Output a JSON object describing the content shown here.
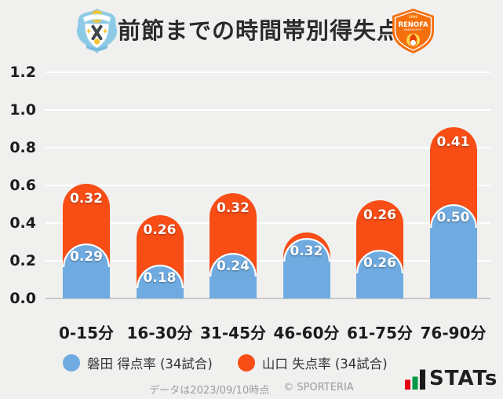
{
  "header": {
    "title": "前節までの時間帯別得失点率",
    "home_logo": "ジュビロ磐田",
    "away_logo": "レノファ山口FC",
    "away_logo_text": {
      "year": "2006",
      "name": "RENOFA",
      "sub": "YAMAGUCHI FC"
    }
  },
  "chart_data": {
    "type": "bar",
    "stacked": true,
    "title": "前節までの時間帯別得失点率",
    "categories": [
      "0-15分",
      "16-30分",
      "31-45分",
      "46-60分",
      "61-75分",
      "76-90分"
    ],
    "series": [
      {
        "name": "磐田 得点率 (34試合)",
        "color": "#6FABE0",
        "values": [
          0.29,
          0.18,
          0.24,
          0.32,
          0.26,
          0.5
        ],
        "data_labels": [
          "0.29",
          "0.18",
          "0.24",
          "0.32",
          "0.26",
          "0.50"
        ]
      },
      {
        "name": "山口 失点率 (34試合)",
        "color": "#F84D15",
        "values": [
          0.32,
          0.26,
          0.32,
          0.03,
          0.26,
          0.41
        ],
        "data_labels": [
          "0.32",
          "0.26",
          "0.32",
          "",
          "0.26",
          "0.41"
        ]
      }
    ],
    "y_ticks": [
      "0.0",
      "0.2",
      "0.4",
      "0.6",
      "0.8",
      "1.0",
      "1.2"
    ],
    "ylim": [
      0,
      1.2
    ],
    "grid": true,
    "legend_position": "bottom"
  },
  "legend": {
    "items": [
      {
        "label": "磐田 得点率 (34試合)",
        "color": "#6FABE0"
      },
      {
        "label": "山口 失点率 (34試合)",
        "color": "#F84D15"
      }
    ]
  },
  "footer": {
    "data_note": "データは2023/09/10時点",
    "copyright": "© SPORTERIA",
    "brand": "STATs",
    "brand_colors": {
      "red": "#E60012",
      "green": "#009944",
      "black": "#1A1A1A"
    }
  },
  "colors": {
    "background": "#F0F0EF",
    "gridline": "#FFFFFF",
    "baseline": "#C9C9C9",
    "bar_blue": "#6FABE0",
    "bar_orange": "#F84D15",
    "title_text": "#2B2B2B",
    "axis_text": "#1C1C1C",
    "legend_text": "#333333",
    "footer_text": "#9D9D9D"
  }
}
